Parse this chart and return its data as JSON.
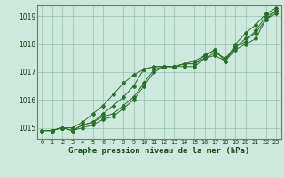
{
  "xlabel": "Graphe pression niveau de la mer (hPa)",
  "ylim": [
    1014.6,
    1019.4
  ],
  "xlim": [
    -0.5,
    23.5
  ],
  "yticks": [
    1015,
    1016,
    1017,
    1018,
    1019
  ],
  "xticks": [
    0,
    1,
    2,
    3,
    4,
    5,
    6,
    7,
    8,
    9,
    10,
    11,
    12,
    13,
    14,
    15,
    16,
    17,
    18,
    19,
    20,
    21,
    22,
    23
  ],
  "bg_color": "#cde8dc",
  "grid_color": "#a0c8b8",
  "line_color": "#2d6e2d",
  "series": [
    [
      1014.9,
      1014.9,
      1015.0,
      1014.9,
      1015.1,
      1015.2,
      1015.5,
      1015.8,
      1016.1,
      1016.5,
      1017.1,
      1017.2,
      1017.2,
      1017.2,
      1017.2,
      1017.2,
      1017.5,
      1017.6,
      1017.4,
      1017.8,
      1018.0,
      1018.2,
      1018.9,
      1019.2
    ],
    [
      1014.9,
      1014.9,
      1015.0,
      1015.0,
      1015.2,
      1015.5,
      1015.8,
      1016.2,
      1016.6,
      1016.9,
      1017.1,
      1017.2,
      1017.2,
      1017.2,
      1017.3,
      1017.3,
      1017.5,
      1017.7,
      1017.5,
      1017.9,
      1018.1,
      1018.5,
      1019.0,
      1019.2
    ],
    [
      1014.9,
      1014.9,
      1015.0,
      1014.9,
      1015.1,
      1015.2,
      1015.4,
      1015.5,
      1015.8,
      1016.1,
      1016.6,
      1017.1,
      1017.2,
      1017.2,
      1017.3,
      1017.4,
      1017.6,
      1017.8,
      1017.4,
      1018.0,
      1018.4,
      1018.7,
      1019.1,
      1019.3
    ],
    [
      1014.9,
      1014.9,
      1015.0,
      1014.9,
      1015.0,
      1015.1,
      1015.3,
      1015.4,
      1015.7,
      1016.0,
      1016.5,
      1017.0,
      1017.2,
      1017.2,
      1017.3,
      1017.3,
      1017.6,
      1017.8,
      1017.4,
      1017.9,
      1018.2,
      1018.4,
      1018.9,
      1019.1
    ]
  ]
}
